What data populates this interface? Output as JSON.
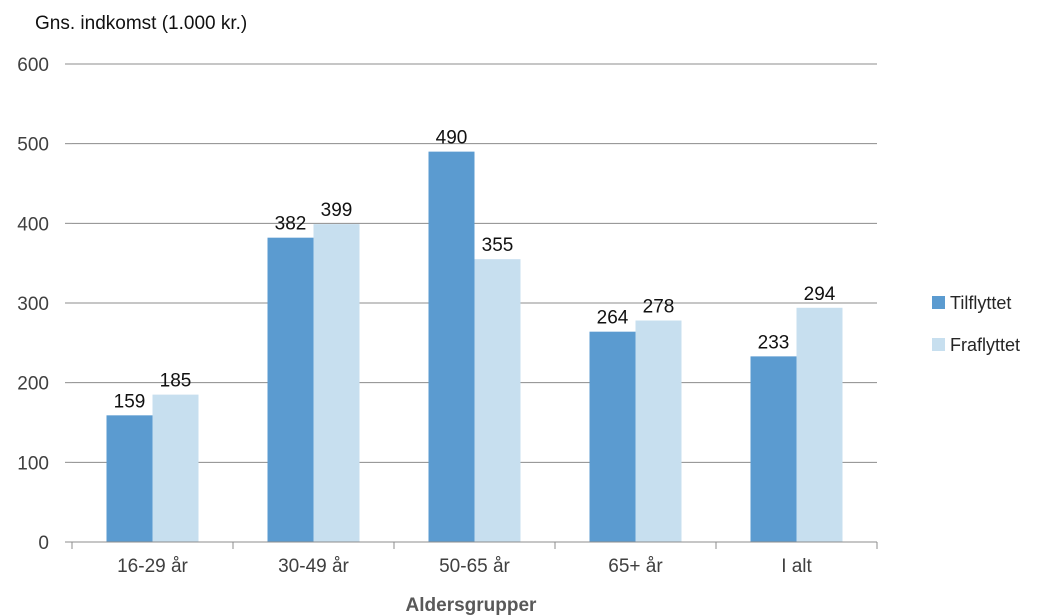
{
  "chart_data": {
    "type": "bar",
    "ylabel": "Gns. indkomst (1.000 kr.)",
    "xlabel": "Aldersgrupper",
    "categories": [
      "16-29 år",
      "30-49 år",
      "50-65 år",
      "65+ år",
      "I alt"
    ],
    "series": [
      {
        "name": "Tilflyttet",
        "color": "#5B9BD0",
        "values": [
          159,
          382,
          490,
          264,
          233
        ]
      },
      {
        "name": "Fraflyttet",
        "color": "#C7DFEF",
        "values": [
          185,
          399,
          355,
          278,
          294
        ]
      }
    ],
    "ylim": [
      0,
      600
    ],
    "yticks": [
      0,
      100,
      200,
      300,
      400,
      500,
      600
    ],
    "grid": true,
    "legend": "right"
  }
}
